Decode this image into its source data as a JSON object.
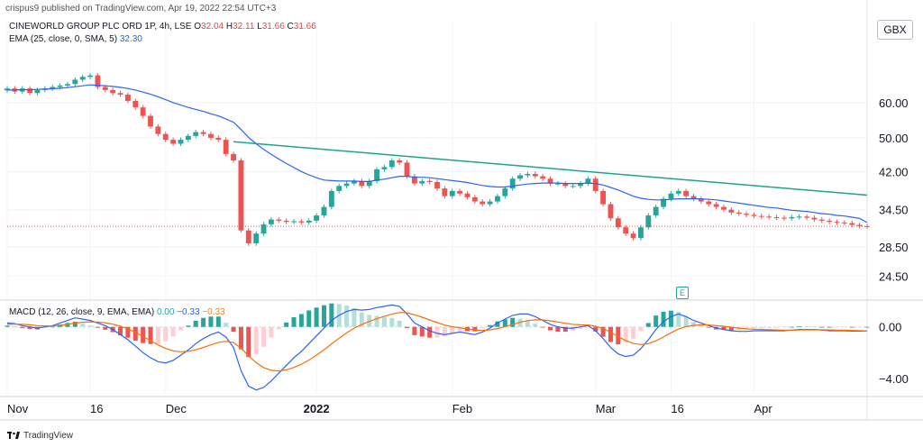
{
  "header": {
    "publisher_line": "crispus9 published on TradingView.com, Apr 19, 2022 22:54 UTC+3"
  },
  "legend": {
    "symbol": "CINEWORLD GROUP PLC ORD 1P, 4h, LSE",
    "ohlc": [
      {
        "label": "O",
        "value": "32.04"
      },
      {
        "label": "H",
        "value": "32.11"
      },
      {
        "label": "L",
        "value": "31.66"
      },
      {
        "label": "C",
        "value": "31.66"
      }
    ],
    "ema_label": "EMA (25, close, 0, SMA, 5)",
    "ema_value": "32.30",
    "macd_label": "MACD (12, 26, close, 9, EMA, EMA)",
    "macd_values": [
      "0.00",
      "−0.33",
      "−0.33"
    ]
  },
  "currency_button": "GBX",
  "earnings_marker": "E",
  "footer": {
    "brand": "TradingView"
  },
  "colors": {
    "up": "#26a69a",
    "down": "#ef5350",
    "ema": "#2962ff",
    "trendline": "#1fa38a",
    "macd_line": "#2962ff",
    "signal_line": "#ff6d00"
  },
  "chart_data": [
    {
      "type": "candlestick",
      "title": "CINEWORLD GROUP PLC ORD 1P, 4h, LSE",
      "x_ticks": [
        {
          "label": "Nov",
          "t": 0
        },
        {
          "label": "16",
          "t": 11
        },
        {
          "label": "Dec",
          "t": 21
        },
        {
          "label": "2022",
          "t": 41
        },
        {
          "label": "Feb",
          "t": 59
        },
        {
          "label": "Mar",
          "t": 78
        },
        {
          "label": "16",
          "t": 88
        },
        {
          "label": "Apr",
          "t": 99
        }
      ],
      "x_range": [
        0,
        114
      ],
      "y_ticks": [
        60.0,
        50.0,
        42.0,
        34.5,
        28.5,
        24.5
      ],
      "y_tick_labels": [
        "60.00",
        "50.00",
        "42.00",
        "34.50",
        "28.50",
        "24.50"
      ],
      "y_scale": "log",
      "ylim": [
        23.2,
        83.0
      ],
      "close": [
        64.5,
        63.5,
        64.5,
        63.0,
        64.0,
        64.5,
        65.0,
        65.5,
        66.0,
        67.5,
        68.5,
        69.0,
        65.0,
        64.0,
        63.0,
        62.5,
        60.5,
        58.5,
        56.0,
        53.0,
        51.0,
        49.5,
        48.5,
        49.5,
        50.5,
        51.5,
        51.0,
        50.0,
        49.5,
        46.0,
        44.5,
        31.0,
        29.0,
        30.5,
        32.0,
        32.8,
        32.6,
        32.4,
        32.5,
        32.3,
        32.6,
        33.5,
        35.0,
        38.0,
        39.0,
        39.5,
        40.0,
        39.0,
        40.0,
        42.5,
        43.0,
        44.5,
        44.0,
        41.0,
        39.5,
        40.0,
        39.8,
        38.5,
        37.0,
        38.0,
        37.5,
        36.8,
        36.0,
        35.5,
        36.0,
        37.0,
        38.5,
        40.5,
        41.2,
        41.5,
        41.0,
        40.5,
        39.5,
        39.5,
        39.0,
        39.0,
        39.5,
        40.5,
        38.0,
        35.5,
        33.0,
        31.5,
        30.5,
        29.8,
        31.5,
        33.5,
        35.0,
        36.5,
        37.5,
        38.0,
        37.0,
        36.5,
        36.0,
        35.5,
        35.0,
        34.5,
        34.0,
        33.8,
        33.6,
        33.4,
        33.3,
        33.2,
        33.1,
        33.0,
        33.2,
        33.3,
        33.1,
        32.8,
        32.6,
        32.4,
        32.3,
        32.2,
        31.9,
        31.7,
        31.66
      ],
      "ema_25": [
        64.0,
        64.0,
        64.1,
        64.1,
        64.2,
        64.3,
        64.4,
        64.6,
        64.8,
        65.1,
        65.4,
        65.7,
        65.6,
        65.4,
        65.2,
        64.9,
        64.5,
        64.0,
        63.3,
        62.6,
        61.8,
        60.9,
        60.0,
        59.2,
        58.5,
        57.9,
        57.3,
        56.6,
        56.0,
        55.1,
        54.2,
        52.2,
        50.1,
        48.5,
        47.1,
        45.9,
        44.8,
        43.8,
        42.9,
        42.0,
        41.3,
        40.7,
        40.2,
        40.1,
        40.0,
        40.0,
        40.0,
        39.9,
        39.9,
        40.2,
        40.4,
        40.7,
        41.0,
        41.0,
        40.8,
        40.8,
        40.7,
        40.5,
        40.3,
        40.1,
        39.9,
        39.7,
        39.4,
        39.1,
        38.9,
        38.8,
        38.8,
        39.0,
        39.2,
        39.4,
        39.5,
        39.6,
        39.6,
        39.6,
        39.5,
        39.5,
        39.5,
        39.6,
        39.5,
        39.2,
        38.7,
        38.2,
        37.6,
        37.0,
        36.6,
        36.4,
        36.3,
        36.3,
        36.4,
        36.5,
        36.5,
        36.5,
        36.5,
        36.4,
        36.3,
        36.1,
        35.9,
        35.7,
        35.5,
        35.3,
        35.1,
        34.9,
        34.8,
        34.6,
        34.4,
        34.3,
        34.2,
        34.0,
        33.8,
        33.7,
        33.5,
        33.4,
        33.2,
        33.0,
        32.3
      ],
      "trendline": {
        "t": [
          30,
          114
        ],
        "price": [
          49.0,
          37.2
        ]
      },
      "last_price_line": 31.66,
      "earnings_marker_t": 88
    },
    {
      "type": "bar",
      "title": "MACD (12, 26, close, 9, EMA, EMA)",
      "y_ticks": [
        0.0,
        -4.0
      ],
      "y_tick_labels": [
        "0.00",
        "−4.00"
      ],
      "ylim": [
        -5.2,
        1.8
      ],
      "macd": [
        0.3,
        0.25,
        0.1,
        0.0,
        -0.1,
        0.0,
        0.1,
        0.3,
        0.5,
        0.7,
        0.6,
        0.5,
        0.3,
        0.1,
        -0.2,
        -0.6,
        -1.0,
        -1.5,
        -2.0,
        -2.4,
        -2.7,
        -2.8,
        -2.6,
        -2.2,
        -1.8,
        -1.3,
        -0.9,
        -0.6,
        -0.4,
        -0.8,
        -1.6,
        -3.4,
        -4.6,
        -4.9,
        -4.7,
        -4.2,
        -3.6,
        -3.0,
        -2.4,
        -1.9,
        -1.3,
        -0.7,
        -0.1,
        0.5,
        0.9,
        1.2,
        1.35,
        1.3,
        1.35,
        1.5,
        1.6,
        1.7,
        1.6,
        1.0,
        0.3,
        0.0,
        -0.3,
        -0.5,
        -0.6,
        -0.5,
        -0.4,
        -0.5,
        -0.6,
        -0.4,
        -0.1,
        0.3,
        0.6,
        0.9,
        1.0,
        1.0,
        0.8,
        0.5,
        0.2,
        0.0,
        -0.1,
        -0.1,
        0.0,
        0.1,
        -0.3,
        -0.9,
        -1.6,
        -2.1,
        -2.3,
        -2.2,
        -1.7,
        -1.0,
        -0.2,
        0.4,
        0.8,
        1.0,
        0.8,
        0.5,
        0.3,
        0.1,
        -0.1,
        -0.2,
        -0.3,
        -0.35,
        -0.35,
        -0.3,
        -0.3,
        -0.3,
        -0.3,
        -0.3,
        -0.25,
        -0.2,
        -0.2,
        -0.2,
        -0.25,
        -0.3,
        -0.3,
        -0.3,
        -0.33,
        -0.33,
        -0.33
      ],
      "signal": [
        0.2,
        0.22,
        0.2,
        0.16,
        0.1,
        0.08,
        0.08,
        0.12,
        0.2,
        0.3,
        0.36,
        0.39,
        0.37,
        0.32,
        0.21,
        0.05,
        -0.16,
        -0.43,
        -0.74,
        -1.07,
        -1.4,
        -1.68,
        -1.86,
        -1.93,
        -1.9,
        -1.78,
        -1.6,
        -1.4,
        -1.2,
        -1.12,
        -1.22,
        -1.66,
        -2.25,
        -2.78,
        -3.16,
        -3.37,
        -3.42,
        -3.34,
        -3.15,
        -2.9,
        -2.58,
        -2.2,
        -1.78,
        -1.32,
        -0.88,
        -0.46,
        -0.1,
        0.18,
        0.42,
        0.64,
        0.83,
        1.0,
        1.12,
        1.1,
        0.94,
        0.75,
        0.54,
        0.33,
        0.14,
        0.01,
        -0.07,
        -0.16,
        -0.25,
        -0.28,
        -0.24,
        -0.13,
        0.02,
        0.2,
        0.36,
        0.49,
        0.55,
        0.54,
        0.47,
        0.38,
        0.28,
        0.2,
        0.16,
        0.15,
        0.06,
        -0.13,
        -0.42,
        -0.75,
        -1.06,
        -1.29,
        -1.37,
        -1.3,
        -1.08,
        -0.78,
        -0.46,
        -0.17,
        0.02,
        0.12,
        0.16,
        0.15,
        0.1,
        0.04,
        -0.03,
        -0.1,
        -0.15,
        -0.18,
        -0.2,
        -0.22,
        -0.24,
        -0.25,
        -0.25,
        -0.24,
        -0.23,
        -0.22,
        -0.23,
        -0.24,
        -0.25,
        -0.26,
        -0.28,
        -0.29,
        -0.33
      ]
    }
  ]
}
